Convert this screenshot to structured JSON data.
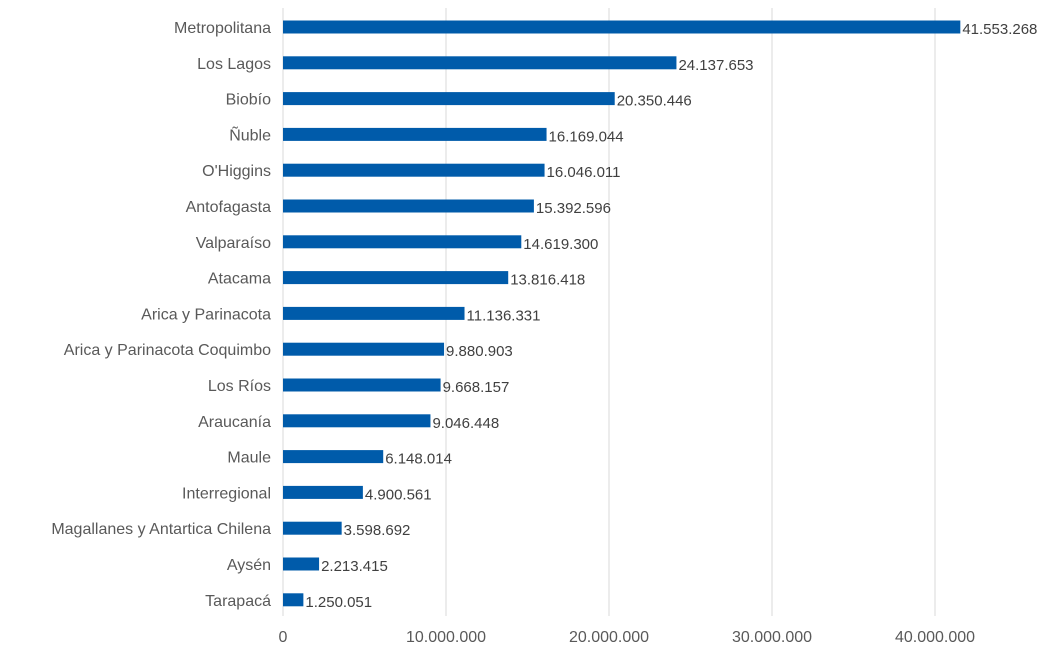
{
  "chart_data": {
    "type": "bar",
    "orientation": "horizontal",
    "title": "",
    "xlabel": "",
    "ylabel": "",
    "categories": [
      "Metropolitana",
      "Los Lagos",
      "Biobío",
      "Ñuble",
      "O'Higgins",
      "Antofagasta",
      "Valparaíso",
      "Atacama",
      "Arica y Parinacota",
      "Arica y Parinacota Coquimbo",
      "Los Ríos",
      "Araucanía",
      "Maule",
      "Interregional",
      "Magallanes y Antartica Chilena",
      "Aysén",
      "Tarapacá"
    ],
    "values": [
      41553268,
      24137653,
      20350446,
      16169044,
      16046011,
      15392596,
      14619300,
      13816418,
      11136331,
      9880903,
      9668157,
      9046448,
      6148014,
      4900561,
      3598692,
      2213415,
      1250051
    ],
    "value_labels": [
      "41.553.268",
      "24.137.653",
      "20.350.446",
      "16.169.044",
      "16.046.011",
      "15.392.596",
      "14.619.300",
      "13.816.418",
      "11.136.331",
      "9.880.903",
      "9.668.157",
      "9.046.448",
      "6.148.014",
      "4.900.561",
      "3.598.692",
      "2.213.415",
      "1.250.051"
    ],
    "xlim": [
      0,
      47000000
    ],
    "xticks": [
      0,
      10000000,
      20000000,
      30000000,
      40000000
    ],
    "xtick_labels": [
      "0",
      "10.000.000",
      "20.000.000",
      "30.000.000",
      "40.000.000"
    ],
    "grid": "vertical",
    "legend": "none",
    "bar_color": "#005BAA",
    "grid_color": "#D9D9D9"
  }
}
